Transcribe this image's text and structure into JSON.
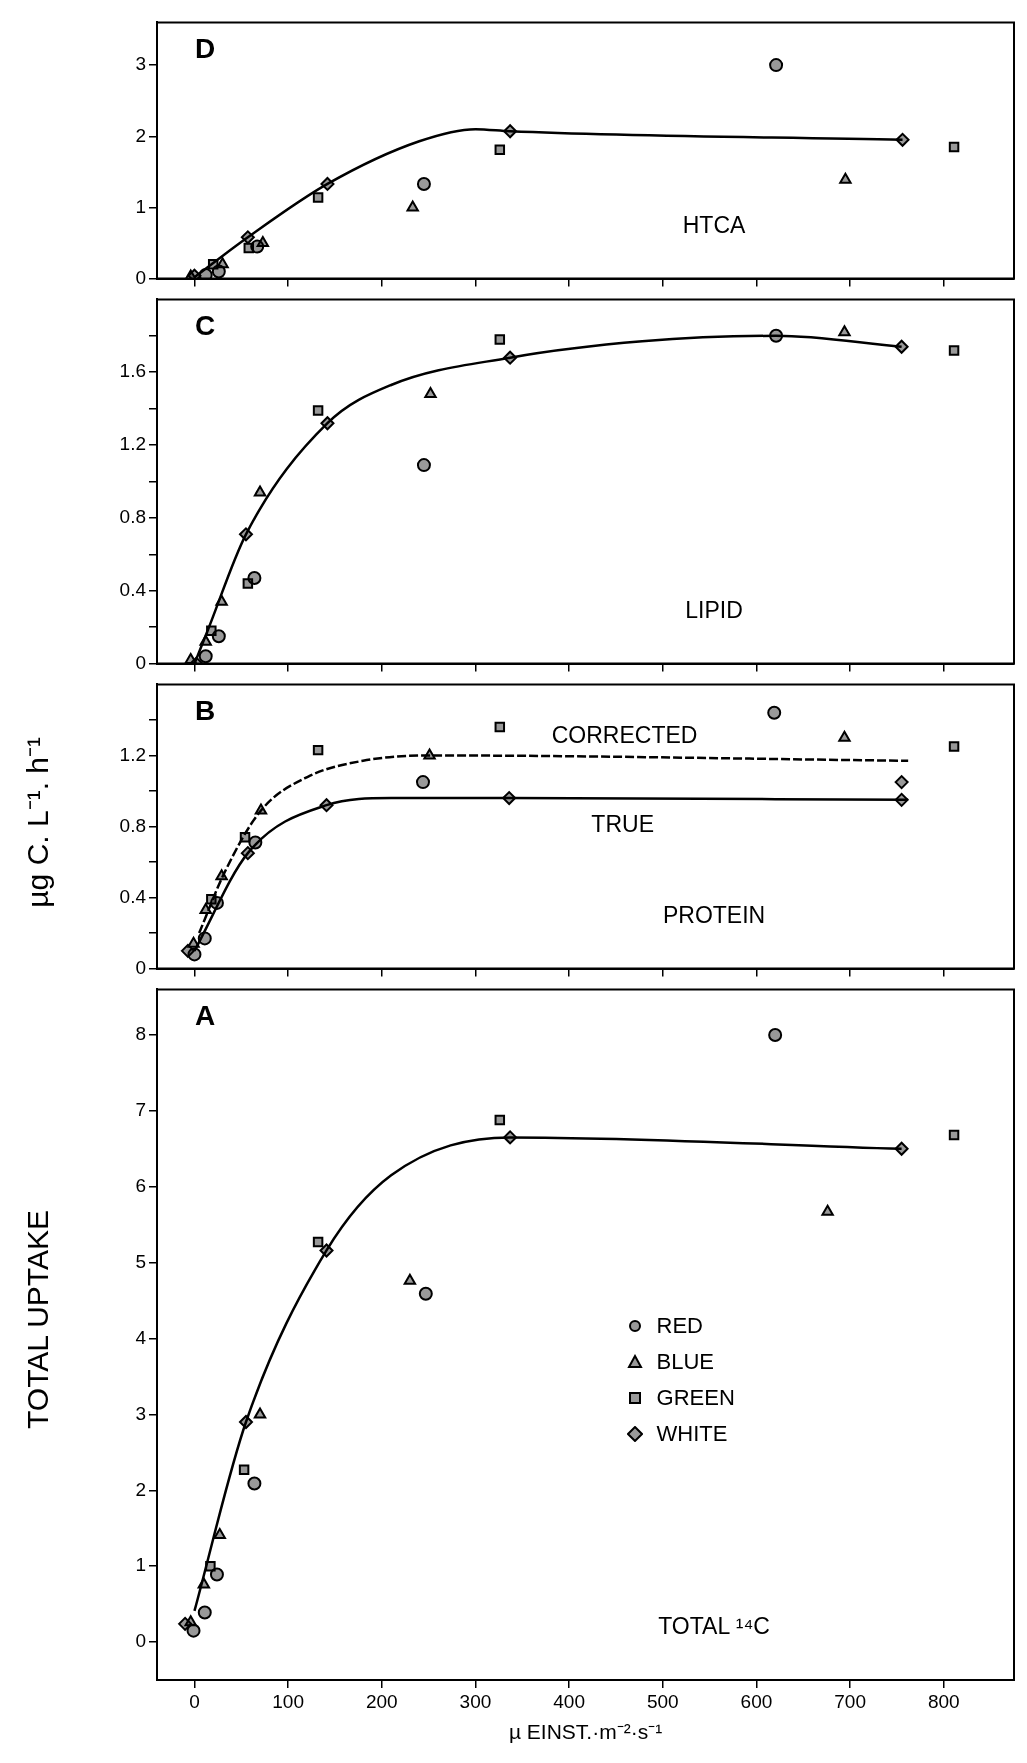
{
  "chart_data": [
    {
      "type": "scatter",
      "title": "D",
      "annotations": [
        "HTCA"
      ],
      "xlim": [
        -40,
        875
      ],
      "xticks": [
        0,
        100,
        200,
        300,
        400,
        500,
        600,
        700,
        800
      ],
      "ylim": [
        0,
        3.6
      ],
      "yticks": [
        0,
        1,
        2,
        3
      ],
      "tick_labels": "y",
      "series": [
        {
          "color": "#000000",
          "marker": "circle",
          "x": [
            12,
            26,
            67,
            245,
            621
          ],
          "values": [
            0.05,
            0.1,
            0.45,
            1.33,
            3.0
          ]
        },
        {
          "color": "#000000",
          "marker": "triangle",
          "x": [
            -4,
            30,
            73,
            233,
            695
          ],
          "values": [
            0.03,
            0.2,
            0.5,
            1.0,
            1.39
          ]
        },
        {
          "color": "#000000",
          "marker": "square",
          "x": [
            20,
            58,
            132,
            326,
            811
          ],
          "values": [
            0.2,
            0.43,
            1.14,
            1.81,
            1.85
          ]
        },
        {
          "color": "#000000",
          "marker": "diamond",
          "x": [
            0,
            57,
            142,
            337,
            756
          ],
          "values": [
            0.04,
            0.58,
            1.33,
            2.07,
            1.95
          ]
        },
        {
          "type": "line",
          "color": "#000000",
          "marker": "none",
          "line_style": "solid",
          "x": [
            0,
            57,
            142,
            240,
            300,
            337,
            756
          ],
          "values": [
            0.02,
            0.58,
            1.33,
            1.93,
            2.1,
            2.07,
            1.95
          ]
        }
      ]
    },
    {
      "type": "scatter",
      "title": "C",
      "annotations": [
        "LIPID"
      ],
      "xlim": [
        -40,
        875
      ],
      "xticks": [
        0,
        100,
        200,
        300,
        400,
        500,
        600,
        700,
        800
      ],
      "ylim": [
        0,
        2.0
      ],
      "yticks": [
        0,
        {
          "value": 0.2,
          "label": null
        },
        0.4,
        {
          "value": 0.6,
          "label": null
        },
        0.8,
        {
          "value": 1.0,
          "label": null
        },
        1.2,
        {
          "value": 1.4,
          "label": null
        },
        1.6,
        {
          "value": 1.8,
          "label": null
        }
      ],
      "tick_labels": "y",
      "series": [
        {
          "color": "#000000",
          "marker": "circle",
          "x": [
            12,
            26,
            64,
            245,
            621
          ],
          "values": [
            0.04,
            0.15,
            0.47,
            1.09,
            1.8
          ]
        },
        {
          "color": "#000000",
          "marker": "triangle",
          "x": [
            -4,
            12,
            29,
            70,
            252,
            694
          ],
          "values": [
            0.02,
            0.12,
            0.34,
            0.94,
            1.48,
            1.82
          ]
        },
        {
          "color": "#000000",
          "marker": "square",
          "x": [
            18,
            57,
            132,
            326,
            811
          ],
          "values": [
            0.18,
            0.44,
            1.39,
            1.78,
            1.72
          ]
        },
        {
          "color": "#000000",
          "marker": "diamond",
          "x": [
            2,
            55,
            142,
            337,
            755
          ],
          "values": [
            0.0,
            0.71,
            1.32,
            1.68,
            1.74
          ]
        },
        {
          "type": "line",
          "color": "#000000",
          "marker": "none",
          "line_style": "solid",
          "x": [
            0,
            14,
            55,
            142,
            210,
            337,
            478,
            621,
            755
          ],
          "values": [
            0,
            0.18,
            0.71,
            1.32,
            1.53,
            1.68,
            1.77,
            1.8,
            1.74
          ]
        }
      ]
    },
    {
      "type": "scatter",
      "title": "B",
      "annotations": [
        "PROTEIN"
      ],
      "ylabel": "µg C. L⁻¹. h⁻¹",
      "xlim": [
        -40,
        875
      ],
      "xticks": [
        0,
        100,
        200,
        300,
        400,
        500,
        600,
        700,
        800
      ],
      "ylim": [
        0,
        1.6
      ],
      "yticks": [
        0,
        {
          "value": 0.2,
          "label": null
        },
        0.4,
        {
          "value": 0.6,
          "label": null
        },
        0.8,
        {
          "value": 1.0,
          "label": null
        },
        1.2,
        {
          "value": 1.4,
          "label": null
        }
      ],
      "tick_labels": "y",
      "series": [
        {
          "color": "#000000",
          "marker": "circle",
          "x": [
            0,
            11,
            24,
            65,
            244,
            619
          ],
          "values": [
            0.08,
            0.17,
            0.37,
            0.71,
            1.05,
            1.44
          ]
        },
        {
          "color": "#000000",
          "marker": "triangle",
          "x": [
            -1,
            12,
            29,
            71,
            251,
            694
          ],
          "values": [
            0.14,
            0.33,
            0.52,
            0.89,
            1.2,
            1.3
          ]
        },
        {
          "color": "#000000",
          "marker": "square",
          "x": [
            18,
            54,
            132,
            326,
            811
          ],
          "values": [
            0.39,
            0.74,
            1.23,
            1.36,
            1.25
          ]
        },
        {
          "color": "#000000",
          "marker": "diamond",
          "x": [
            -7,
            57,
            141,
            336,
            755,
            755
          ],
          "values": [
            0.1,
            0.65,
            0.92,
            0.96,
            0.95,
            1.05
          ]
        },
        {
          "type": "line",
          "name": "CORRECTED",
          "color": "#000000",
          "marker": "none",
          "line_style": "dashed",
          "x": [
            5,
            32,
            71,
            121,
            180,
            251,
            762
          ],
          "values": [
            0.2,
            0.54,
            0.89,
            1.08,
            1.17,
            1.2,
            1.17
          ]
        },
        {
          "type": "line",
          "name": "TRUE",
          "color": "#000000",
          "marker": "none",
          "line_style": "solid",
          "x": [
            0,
            57,
            141,
            210,
            336,
            762
          ],
          "values": [
            0.1,
            0.65,
            0.92,
            0.96,
            0.96,
            0.95
          ]
        }
      ]
    },
    {
      "type": "scatter",
      "title": "A",
      "annotations": [
        "TOTAL ¹⁴C"
      ],
      "ylabel": "TOTAL UPTAKE",
      "xlabel": "µ EINST.·m⁻²·s⁻¹",
      "legend": "right",
      "xlim": [
        -40,
        875
      ],
      "xticks": [
        0,
        100,
        200,
        300,
        400,
        500,
        600,
        700,
        800
      ],
      "ylim": [
        -0.5,
        8.6
      ],
      "yticks": [
        0,
        1,
        2,
        3,
        4,
        5,
        6,
        7,
        8
      ],
      "series": [
        {
          "name": "RED",
          "color": "#000000",
          "marker": "circle",
          "x": [
            -1,
            11,
            24,
            64,
            247,
            620
          ],
          "values": [
            0.15,
            0.39,
            0.89,
            2.09,
            4.59,
            8.0
          ]
        },
        {
          "name": "BLUE",
          "color": "#000000",
          "marker": "triangle",
          "x": [
            -4,
            10,
            27,
            70,
            230,
            676
          ],
          "values": [
            0.26,
            0.76,
            1.41,
            3.0,
            4.76,
            5.67
          ]
        },
        {
          "name": "GREEN",
          "color": "#000000",
          "marker": "square",
          "x": [
            17,
            53,
            132,
            326,
            811
          ],
          "values": [
            1.0,
            2.27,
            5.27,
            6.88,
            6.68
          ]
        },
        {
          "name": "WHITE",
          "color": "#000000",
          "marker": "diamond",
          "x": [
            -10,
            55,
            141,
            337,
            755
          ],
          "values": [
            0.24,
            2.9,
            5.16,
            6.65,
            6.5
          ]
        },
        {
          "type": "line",
          "color": "#000000",
          "marker": "none",
          "line_style": "solid",
          "x": [
            0,
            55,
            141,
            210,
            337,
            755
          ],
          "values": [
            0.41,
            2.9,
            5.16,
            6.15,
            6.65,
            6.5
          ]
        }
      ]
    }
  ]
}
